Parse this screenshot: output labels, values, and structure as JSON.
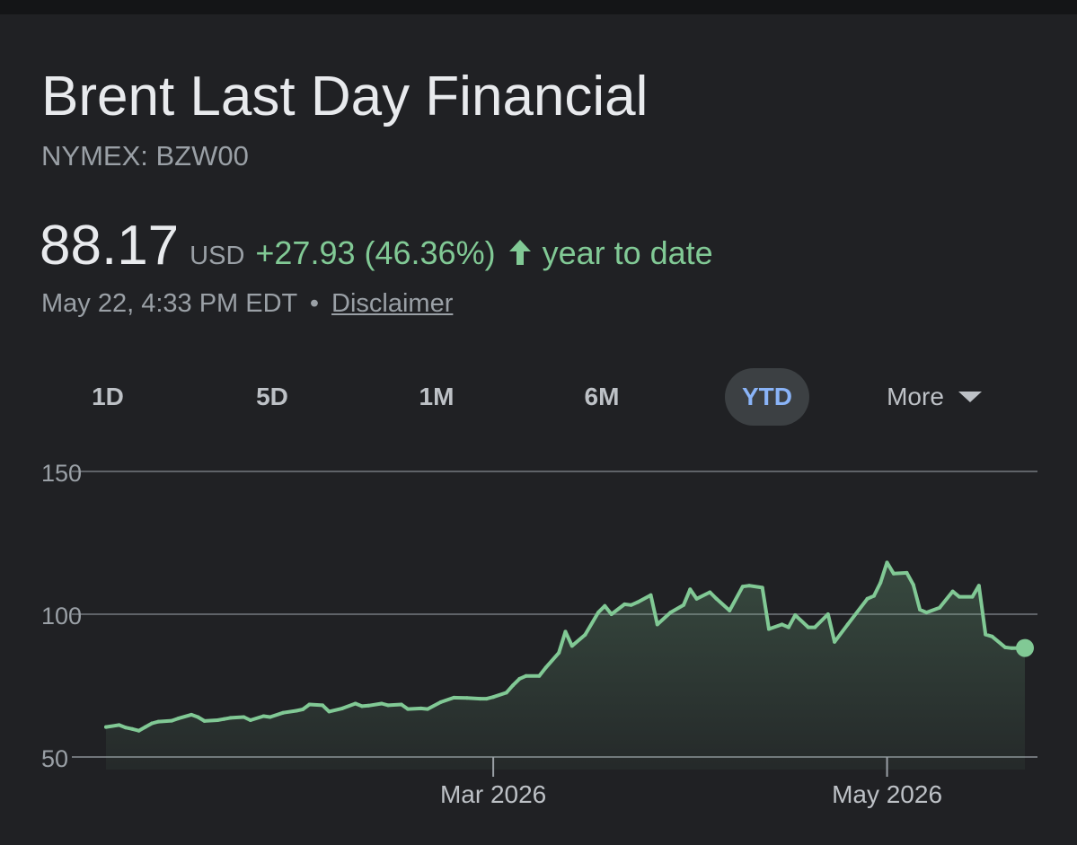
{
  "header": {
    "title": "Brent Last Day Financial",
    "ticker": "NYMEX: BZW00"
  },
  "quote": {
    "price": "88.17",
    "currency": "USD",
    "change": "+27.93 (46.36%)",
    "period": "year to date",
    "timestamp": "May 22, 4:33 PM EDT",
    "separator": "•",
    "disclaimer": "Disclaimer"
  },
  "ranges": {
    "items": [
      "1D",
      "5D",
      "1M",
      "6M",
      "YTD"
    ],
    "active": "YTD",
    "more_label": "More"
  },
  "colors": {
    "background": "#202124",
    "line": "#81c995",
    "active_range_bg": "#3c4043",
    "active_range_text": "#8ab4f8",
    "gridline": "#5f6368"
  },
  "chart_data": {
    "type": "area",
    "title": "",
    "xlabel": "",
    "ylabel": "",
    "ylim": [
      50,
      150
    ],
    "yticks": [
      150,
      100,
      50
    ],
    "xticks": [
      {
        "label": "Mar 2026",
        "x": "2026-03-02"
      },
      {
        "label": "May 2026",
        "x": "2026-05-01"
      }
    ],
    "x_range": [
      "2026-01-02",
      "2026-05-22"
    ],
    "grid": true,
    "series": [
      {
        "values": [
          [
            "2026-01-02",
            60.5
          ],
          [
            "2026-01-04",
            61.2
          ],
          [
            "2026-01-05",
            60.3
          ],
          [
            "2026-01-06",
            59.8
          ],
          [
            "2026-01-07",
            59.2
          ],
          [
            "2026-01-08",
            60.5
          ],
          [
            "2026-01-09",
            61.8
          ],
          [
            "2026-01-10",
            62.4
          ],
          [
            "2026-01-12",
            62.7
          ],
          [
            "2026-01-13",
            63.5
          ],
          [
            "2026-01-15",
            64.8
          ],
          [
            "2026-01-16",
            64.0
          ],
          [
            "2026-01-17",
            62.6
          ],
          [
            "2026-01-19",
            62.9
          ],
          [
            "2026-01-20",
            63.3
          ],
          [
            "2026-01-21",
            63.7
          ],
          [
            "2026-01-23",
            64.0
          ],
          [
            "2026-01-24",
            62.9
          ],
          [
            "2026-01-26",
            64.3
          ],
          [
            "2026-01-27",
            64.0
          ],
          [
            "2026-01-29",
            65.5
          ],
          [
            "2026-01-31",
            66.2
          ],
          [
            "2026-02-01",
            66.7
          ],
          [
            "2026-02-02",
            68.4
          ],
          [
            "2026-02-04",
            68.1
          ],
          [
            "2026-02-05",
            65.9
          ],
          [
            "2026-02-07",
            67.0
          ],
          [
            "2026-02-09",
            68.7
          ],
          [
            "2026-02-10",
            67.8
          ],
          [
            "2026-02-11",
            68.0
          ],
          [
            "2026-02-13",
            68.7
          ],
          [
            "2026-02-14",
            68.1
          ],
          [
            "2026-02-16",
            68.4
          ],
          [
            "2026-02-17",
            66.8
          ],
          [
            "2026-02-19",
            67.0
          ],
          [
            "2026-02-20",
            66.8
          ],
          [
            "2026-02-22",
            69.2
          ],
          [
            "2026-02-24",
            70.8
          ],
          [
            "2026-02-26",
            70.7
          ],
          [
            "2026-02-28",
            70.4
          ],
          [
            "2026-03-01",
            70.4
          ],
          [
            "2026-03-02",
            71.0
          ],
          [
            "2026-03-04",
            72.5
          ],
          [
            "2026-03-05",
            75.1
          ],
          [
            "2026-03-06",
            77.4
          ],
          [
            "2026-03-07",
            78.4
          ],
          [
            "2026-03-09",
            78.4
          ],
          [
            "2026-03-10",
            81.3
          ],
          [
            "2026-03-12",
            86.5
          ],
          [
            "2026-03-13",
            93.9
          ],
          [
            "2026-03-14",
            88.9
          ],
          [
            "2026-03-16",
            92.8
          ],
          [
            "2026-03-18",
            100.6
          ],
          [
            "2026-03-19",
            102.9
          ],
          [
            "2026-03-20",
            100.0
          ],
          [
            "2026-03-22",
            103.5
          ],
          [
            "2026-03-23",
            103.2
          ],
          [
            "2026-03-24",
            104.2
          ],
          [
            "2026-03-26",
            106.7
          ],
          [
            "2026-03-27",
            96.4
          ],
          [
            "2026-03-29",
            100.6
          ],
          [
            "2026-03-31",
            103.2
          ],
          [
            "2026-04-01",
            108.7
          ],
          [
            "2026-04-02",
            105.4
          ],
          [
            "2026-04-04",
            107.7
          ],
          [
            "2026-04-05",
            105.4
          ],
          [
            "2026-04-07",
            101.3
          ],
          [
            "2026-04-09",
            109.7
          ],
          [
            "2026-04-10",
            110.0
          ],
          [
            "2026-04-12",
            109.3
          ],
          [
            "2026-04-13",
            94.8
          ],
          [
            "2026-04-15",
            96.4
          ],
          [
            "2026-04-16",
            95.4
          ],
          [
            "2026-04-17",
            99.7
          ],
          [
            "2026-04-19",
            95.4
          ],
          [
            "2026-04-20",
            95.4
          ],
          [
            "2026-04-22",
            100.0
          ],
          [
            "2026-04-23",
            90.3
          ],
          [
            "2026-04-25",
            96.4
          ],
          [
            "2026-04-28",
            105.4
          ],
          [
            "2026-04-29",
            106.4
          ],
          [
            "2026-04-30",
            111.0
          ],
          [
            "2026-05-01",
            118.1
          ],
          [
            "2026-05-02",
            114.2
          ],
          [
            "2026-05-04",
            114.5
          ],
          [
            "2026-05-05",
            110.3
          ],
          [
            "2026-05-06",
            101.6
          ],
          [
            "2026-05-07",
            100.6
          ],
          [
            "2026-05-09",
            102.3
          ],
          [
            "2026-05-11",
            108.0
          ],
          [
            "2026-05-12",
            106.1
          ],
          [
            "2026-05-14",
            106.1
          ],
          [
            "2026-05-15",
            110.0
          ],
          [
            "2026-05-16",
            92.9
          ],
          [
            "2026-05-17",
            92.2
          ],
          [
            "2026-05-19",
            88.4
          ],
          [
            "2026-05-20",
            88.1
          ],
          [
            "2026-05-22",
            88.17
          ]
        ]
      }
    ]
  }
}
